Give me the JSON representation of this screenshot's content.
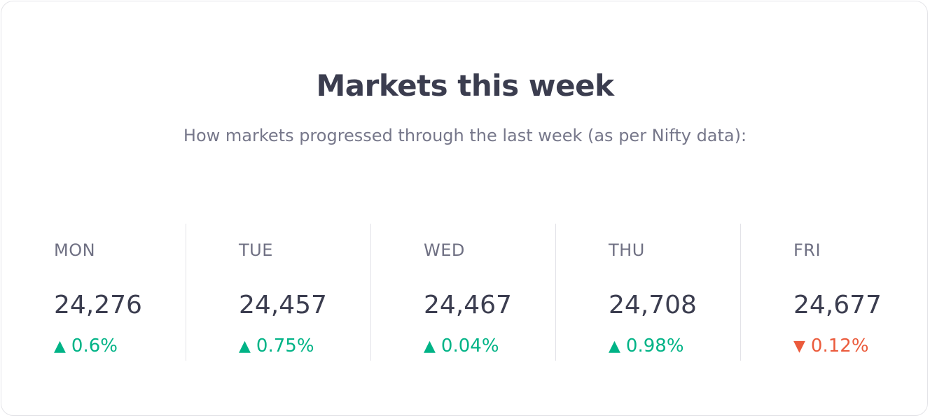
{
  "title": "Markets this week",
  "subtitle": "How markets progressed through the last week (as per Nifty data):",
  "colors": {
    "up": "#00b386",
    "down": "#eb5b3c",
    "text": "#3b3d4f",
    "muted": "#76778a"
  },
  "days": [
    {
      "name": "MON",
      "value": "24,276",
      "change": "0.6%",
      "direction": "up",
      "arrow": "▲"
    },
    {
      "name": "TUE",
      "value": "24,457",
      "change": "0.75%",
      "direction": "up",
      "arrow": "▲"
    },
    {
      "name": "WED",
      "value": "24,467",
      "change": "0.04%",
      "direction": "up",
      "arrow": "▲"
    },
    {
      "name": "THU",
      "value": "24,708",
      "change": "0.98%",
      "direction": "up",
      "arrow": "▲"
    },
    {
      "name": "FRI",
      "value": "24,677",
      "change": "0.12%",
      "direction": "down",
      "arrow": "▼"
    }
  ]
}
